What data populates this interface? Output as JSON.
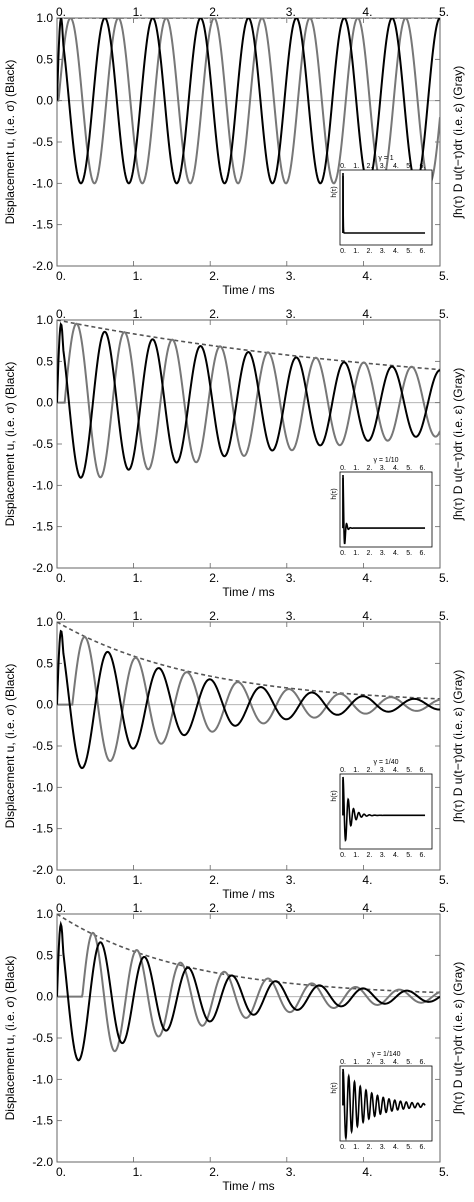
{
  "chart_data": [
    {
      "type": "line",
      "panel": 1,
      "xlabel": "Time / ms",
      "ylabel": "Displacement u, (i.e. σ) (Black)",
      "ylabel_right": "∫h(τ) D u(t−τ)dτ (i.e. ε) (Gray)",
      "xlim": [
        0,
        5
      ],
      "ylim": [
        -2,
        1
      ],
      "xticks": [
        "0.",
        "1.",
        "2.",
        "3.",
        "4.",
        "5."
      ],
      "yticks": [
        "1.0",
        "0.5",
        "0.0",
        "-0.5",
        "-1.0",
        "-1.5",
        "-2.0"
      ],
      "frequency_per_ms": 1.6,
      "gray_phase_lag_ms": 0.02,
      "decay_rate_per_ms": 0,
      "series": [
        {
          "color": "#000000",
          "style": "solid",
          "peak_amplitude": 1.0
        },
        {
          "color": "#777777",
          "style": "solid",
          "peak_amplitude": 1.0
        },
        {
          "color": "#555555",
          "style": "dashed",
          "level_at_0": 1.0,
          "level_at_5": 1.0
        }
      ],
      "inset": {
        "title": "γ = 1",
        "ylabel": "h(τ)",
        "xticks": [
          "0.",
          "1.",
          "2.",
          "3.",
          "4.",
          "5.",
          "6."
        ],
        "xlim": [
          0,
          6.5
        ],
        "ylim": [
          -0.15,
          1
        ],
        "peak": 1.0,
        "decay_per_unit": 80,
        "ringing_amplitude": 0,
        "ringing_freq": 0
      }
    },
    {
      "type": "line",
      "panel": 2,
      "xlabel": "Time / ms",
      "ylabel": "Displacement u, (i.e. σ) (Black)",
      "ylabel_right": "∫h(τ) D u(t−τ)dτ (i.e. ε) (Gray)",
      "xlim": [
        0,
        5
      ],
      "ylim": [
        -2,
        1
      ],
      "xticks": [
        "0.",
        "1.",
        "2.",
        "3.",
        "4.",
        "5."
      ],
      "yticks": [
        "1.0",
        "0.5",
        "0.0",
        "-0.5",
        "-1.0",
        "-1.5",
        "-2.0"
      ],
      "frequency_per_ms": 1.6,
      "gray_phase_lag_ms": 0.1,
      "decay_rate_per_ms": 0.18,
      "series": [
        {
          "color": "#000000",
          "style": "solid",
          "peak_amplitude": 0.96
        },
        {
          "color": "#777777",
          "style": "solid",
          "peak_amplitude": 1.0
        },
        {
          "color": "#555555",
          "style": "dashed",
          "level_at_0": 1.0,
          "level_at_5": 0.4
        }
      ],
      "inset": {
        "title": "γ = 1/10",
        "ylabel": "h(τ)",
        "xticks": [
          "0.",
          "1.",
          "2.",
          "3.",
          "4.",
          "5.",
          "6."
        ],
        "xlim": [
          0,
          6.5
        ],
        "ylim": [
          -0.3,
          1
        ],
        "peak": 1.0,
        "decay_per_unit": 9,
        "ringing_amplitude": 0.2,
        "ringing_freq": 3.5
      }
    },
    {
      "type": "line",
      "panel": 3,
      "xlabel": "Time / ms",
      "ylabel": "Displacement u, (i.e. σ) (Black)",
      "ylabel_right": "∫h(τ) D u(t−τ)dτ (i.e. ε) (Gray)",
      "xlim": [
        0,
        5
      ],
      "ylim": [
        -2,
        1
      ],
      "xticks": [
        "0.",
        "1.",
        "2.",
        "3.",
        "4.",
        "5."
      ],
      "yticks": [
        "1.0",
        "0.5",
        "0.0",
        "-0.5",
        "-1.0",
        "-1.5",
        "-2.0"
      ],
      "frequency_per_ms": 1.5,
      "gray_phase_lag_ms": 0.2,
      "decay_rate_per_ms": 0.55,
      "series": [
        {
          "color": "#000000",
          "style": "solid",
          "peak_amplitude": 0.92
        },
        {
          "color": "#777777",
          "style": "solid",
          "peak_amplitude": 1.0
        },
        {
          "color": "#555555",
          "style": "dashed",
          "level_at_0": 1.0,
          "level_at_5": 0.07
        }
      ],
      "inset": {
        "title": "γ = 1/40",
        "ylabel": "h(τ)",
        "xticks": [
          "0.",
          "1.",
          "2.",
          "3.",
          "4.",
          "5.",
          "6."
        ],
        "xlim": [
          0,
          6.5
        ],
        "ylim": [
          -0.8,
          1
        ],
        "peak": 1.0,
        "decay_per_unit": 2.2,
        "ringing_amplitude": 0.7,
        "ringing_freq": 2.5
      }
    },
    {
      "type": "line",
      "panel": 4,
      "xlabel": "Time / ms",
      "ylabel": "Displacement u, (i.e. σ) (Black)",
      "ylabel_right": "∫h(τ) D u(t−τ)dτ (i.e. ε) (Gray)",
      "xlim": [
        0,
        5
      ],
      "ylim": [
        -2,
        1
      ],
      "xticks": [
        "0.",
        "1.",
        "2.",
        "3.",
        "4.",
        "5."
      ],
      "yticks": [
        "1.0",
        "0.5",
        "0.0",
        "-0.5",
        "-1.0",
        "-1.5",
        "-2.0"
      ],
      "frequency_per_ms": 1.75,
      "gray_phase_lag_ms": 0.33,
      "decay_rate_per_ms": 0.55,
      "series": [
        {
          "color": "#000000",
          "style": "solid",
          "peak_amplitude": 0.9
        },
        {
          "color": "#777777",
          "style": "solid",
          "peak_amplitude": 1.0
        },
        {
          "color": "#555555",
          "style": "dashed",
          "level_at_0": 1.0,
          "level_at_5": 0.05
        }
      ],
      "inset": {
        "title": "γ = 1/140",
        "ylabel": "h(τ)",
        "xticks": [
          "0.",
          "1.",
          "2.",
          "3.",
          "4.",
          "5.",
          "6."
        ],
        "xlim": [
          0,
          6.5
        ],
        "ylim": [
          -0.9,
          1
        ],
        "peak": 1.0,
        "decay_per_unit": 0.5,
        "ringing_amplitude": 0.85,
        "ringing_freq": 2.3
      }
    }
  ]
}
